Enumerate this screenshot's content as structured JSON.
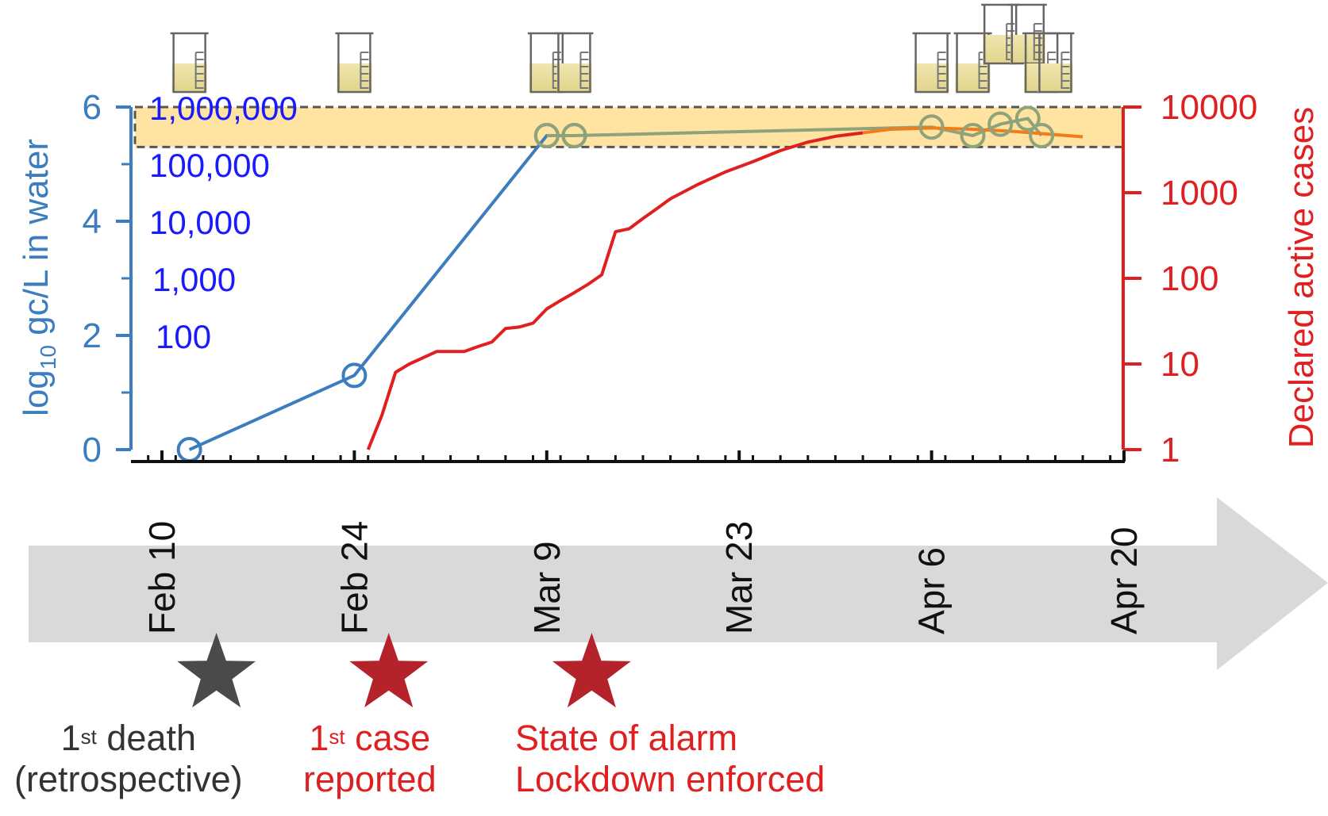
{
  "chart_data": {
    "type": "line",
    "x_axis": {
      "type": "date",
      "year": null,
      "ticks": [
        "Feb 10",
        "Feb 24",
        "Mar 9",
        "Mar 23",
        "Apr 6",
        "Apr 20"
      ],
      "range": [
        "Feb 8",
        "Apr 21"
      ]
    },
    "y_left": {
      "label_prefix": "log",
      "label_subscript": "10",
      "label_suffix": " gc/L in water",
      "ticks": [
        0,
        2,
        4,
        6
      ],
      "range": [
        0,
        6
      ],
      "inner_labels": [
        {
          "value": 6,
          "text": "1,000,000"
        },
        {
          "value": 5,
          "text": "100,000"
        },
        {
          "value": 4,
          "text": "10,000"
        },
        {
          "value": 3,
          "text": "1,000"
        },
        {
          "value": 2,
          "text": "100"
        }
      ]
    },
    "y_right": {
      "label": "Declared active cases",
      "scale": "log",
      "ticks": [
        1,
        10,
        100,
        1000,
        10000
      ],
      "tick_labels": [
        "1",
        "10",
        "100",
        "1000",
        "10000"
      ],
      "range": [
        1,
        10000
      ]
    },
    "series": [
      {
        "axis": "left",
        "color": "#3b7dbf",
        "marker": "open-circle",
        "points": [
          {
            "x": "Feb 12",
            "y": 0
          },
          {
            "x": "Feb 24",
            "y": 1.3
          },
          {
            "x": "Mar 9",
            "y": 5.5
          },
          {
            "x": "Mar 11",
            "y": 5.5
          }
        ]
      },
      {
        "axis": "left",
        "color": "#8fa37a",
        "marker": "open-circle",
        "points": [
          {
            "x": "Mar 9",
            "y": 5.5
          },
          {
            "x": "Mar 11",
            "y": 5.5
          },
          {
            "x": "Apr 6",
            "y": 5.65
          },
          {
            "x": "Apr 9",
            "y": 5.5
          },
          {
            "x": "Apr 11",
            "y": 5.7
          },
          {
            "x": "Apr 13",
            "y": 5.8
          },
          {
            "x": "Apr 14",
            "y": 5.5
          }
        ]
      },
      {
        "axis": "right",
        "color": "#e02020",
        "points": [
          {
            "x": "Feb 25",
            "y": 1
          },
          {
            "x": "Feb 26",
            "y": 2.5
          },
          {
            "x": "Feb 27",
            "y": 8
          },
          {
            "x": "Feb 28",
            "y": 10
          },
          {
            "x": "Mar 1",
            "y": 14
          },
          {
            "x": "Mar 3",
            "y": 14
          },
          {
            "x": "Mar 4",
            "y": 16
          },
          {
            "x": "Mar 5",
            "y": 18
          },
          {
            "x": "Mar 6",
            "y": 26
          },
          {
            "x": "Mar 7",
            "y": 27
          },
          {
            "x": "Mar 8",
            "y": 30
          },
          {
            "x": "Mar 9",
            "y": 44
          },
          {
            "x": "Mar 10",
            "y": 55
          },
          {
            "x": "Mar 11",
            "y": 68
          },
          {
            "x": "Mar 12",
            "y": 85
          },
          {
            "x": "Mar 13",
            "y": 110
          },
          {
            "x": "Mar 14",
            "y": 350
          },
          {
            "x": "Mar 15",
            "y": 380
          },
          {
            "x": "Mar 16",
            "y": 500
          },
          {
            "x": "Mar 17",
            "y": 650
          },
          {
            "x": "Mar 18",
            "y": 850
          },
          {
            "x": "Mar 20",
            "y": 1250
          },
          {
            "x": "Mar 22",
            "y": 1750
          },
          {
            "x": "Mar 24",
            "y": 2300
          },
          {
            "x": "Mar 26",
            "y": 3100
          },
          {
            "x": "Mar 28",
            "y": 3900
          },
          {
            "x": "Mar 30",
            "y": 4550
          },
          {
            "x": "Apr 1",
            "y": 5000
          }
        ]
      },
      {
        "axis": "right",
        "color": "#f07d1a",
        "points": [
          {
            "x": "Apr 1",
            "y": 5000
          },
          {
            "x": "Apr 3",
            "y": 5500
          },
          {
            "x": "Apr 6",
            "y": 5700
          },
          {
            "x": "Apr 9",
            "y": 5500
          },
          {
            "x": "Apr 12",
            "y": 5200
          },
          {
            "x": "Apr 14",
            "y": 4900
          },
          {
            "x": "Apr 17",
            "y": 4500
          }
        ]
      }
    ],
    "highlight_band": {
      "axis": "left",
      "y_from": 5.3,
      "y_to": 6,
      "color": "#ffe3a0"
    },
    "sampling_beakers": [
      "Feb 12",
      "Feb 24",
      "Mar 9",
      "Mar 11",
      "Apr 6",
      "Apr 9",
      "Apr 11",
      "Apr 13",
      "Apr 14",
      "Apr 15"
    ],
    "events": [
      {
        "x": "Feb 12",
        "color": "#4a4a4a",
        "marker": "star",
        "line1": "1",
        "line1_sup": "st",
        "line1_rest": " death",
        "line2": "(retrospective)"
      },
      {
        "x": "Feb 25",
        "color": "#b5232a",
        "marker": "star",
        "line1": "1",
        "line1_sup": "st",
        "line1_rest": " case",
        "line2": "reported"
      },
      {
        "x": "Mar 14",
        "color": "#b5232a",
        "marker": "star",
        "line1": "State of alarm",
        "line1_sup": "",
        "line1_rest": "",
        "line2": "Lockdown enforced"
      }
    ]
  }
}
